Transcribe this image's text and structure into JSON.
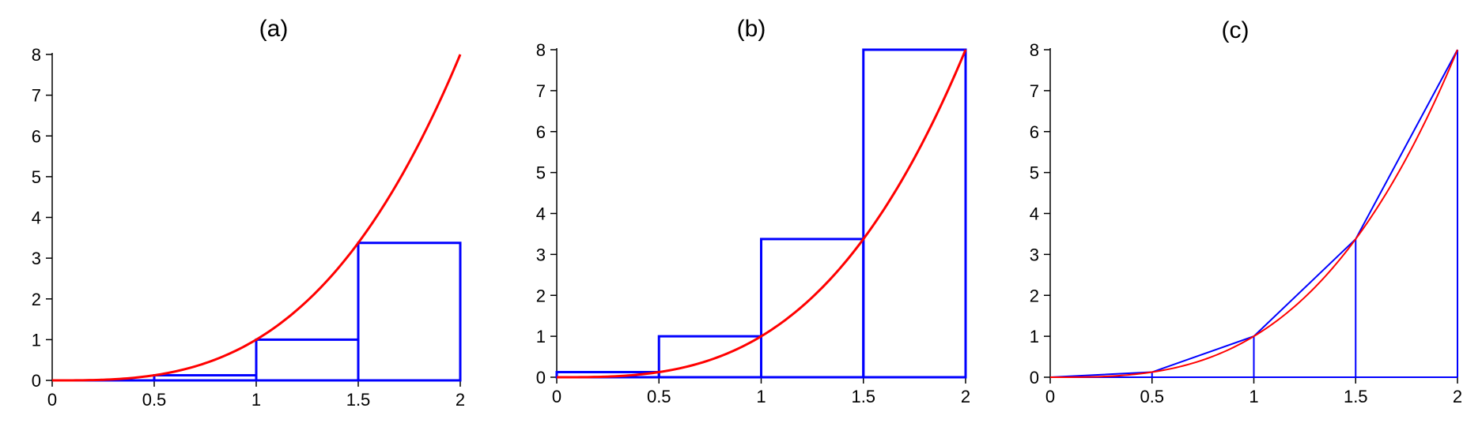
{
  "colors": {
    "curve": "#ff0000",
    "approx": "#0000ff",
    "axis": "#000000"
  },
  "chart_data": [
    {
      "type": "line",
      "title": "(a)",
      "function": "x^3",
      "method": "left-rectangles",
      "curve": {
        "x": [
          0,
          0.25,
          0.5,
          0.75,
          1,
          1.25,
          1.5,
          1.75,
          2
        ],
        "y": [
          0,
          0.015625,
          0.125,
          0.421875,
          1,
          1.953125,
          3.375,
          5.359375,
          8
        ]
      },
      "approximation": {
        "partition": [
          0,
          0.5,
          1,
          1.5,
          2
        ],
        "heights": [
          0,
          0.125,
          1,
          3.375
        ]
      },
      "xlim": [
        0,
        2
      ],
      "ylim": [
        0,
        8
      ],
      "xticks": [
        0,
        0.5,
        1,
        1.5,
        2
      ],
      "xtick_labels": [
        "0",
        "0.5",
        "1",
        "1.5",
        "2"
      ],
      "yticks": [
        0,
        1,
        2,
        3,
        4,
        5,
        6,
        7,
        8
      ],
      "ytick_labels": [
        "0",
        "1",
        "2",
        "3",
        "4",
        "5",
        "6",
        "7",
        "8"
      ],
      "grid": false
    },
    {
      "type": "line",
      "title": "(b)",
      "function": "x^3",
      "method": "right-rectangles",
      "curve": {
        "x": [
          0,
          0.25,
          0.5,
          0.75,
          1,
          1.25,
          1.5,
          1.75,
          2
        ],
        "y": [
          0,
          0.015625,
          0.125,
          0.421875,
          1,
          1.953125,
          3.375,
          5.359375,
          8
        ]
      },
      "approximation": {
        "partition": [
          0,
          0.5,
          1,
          1.5,
          2
        ],
        "heights": [
          0.125,
          1,
          3.375,
          8
        ]
      },
      "xlim": [
        0,
        2
      ],
      "ylim": [
        0,
        8
      ],
      "xticks": [
        0,
        0.5,
        1,
        1.5,
        2
      ],
      "xtick_labels": [
        "0",
        "0.5",
        "1",
        "1.5",
        "2"
      ],
      "yticks": [
        0,
        1,
        2,
        3,
        4,
        5,
        6,
        7,
        8
      ],
      "ytick_labels": [
        "0",
        "1",
        "2",
        "3",
        "4",
        "5",
        "6",
        "7",
        "8"
      ],
      "grid": false
    },
    {
      "type": "line",
      "title": "(c)",
      "function": "x^3",
      "method": "trapezoids",
      "curve": {
        "x": [
          0,
          0.25,
          0.5,
          0.75,
          1,
          1.25,
          1.5,
          1.75,
          2
        ],
        "y": [
          0,
          0.015625,
          0.125,
          0.421875,
          1,
          1.953125,
          3.375,
          5.359375,
          8
        ]
      },
      "approximation": {
        "partition": [
          0,
          0.5,
          1,
          1.5,
          2
        ],
        "heights": [
          0,
          0.125,
          1,
          3.375,
          8
        ]
      },
      "xlim": [
        0,
        2
      ],
      "ylim": [
        0,
        8
      ],
      "xticks": [
        0,
        0.5,
        1,
        1.5,
        2
      ],
      "xtick_labels": [
        "0",
        "0.5",
        "1",
        "1.5",
        "2"
      ],
      "yticks": [
        0,
        1,
        2,
        3,
        4,
        5,
        6,
        7,
        8
      ],
      "ytick_labels": [
        "0",
        "1",
        "2",
        "3",
        "4",
        "5",
        "6",
        "7",
        "8"
      ],
      "grid": false
    }
  ]
}
